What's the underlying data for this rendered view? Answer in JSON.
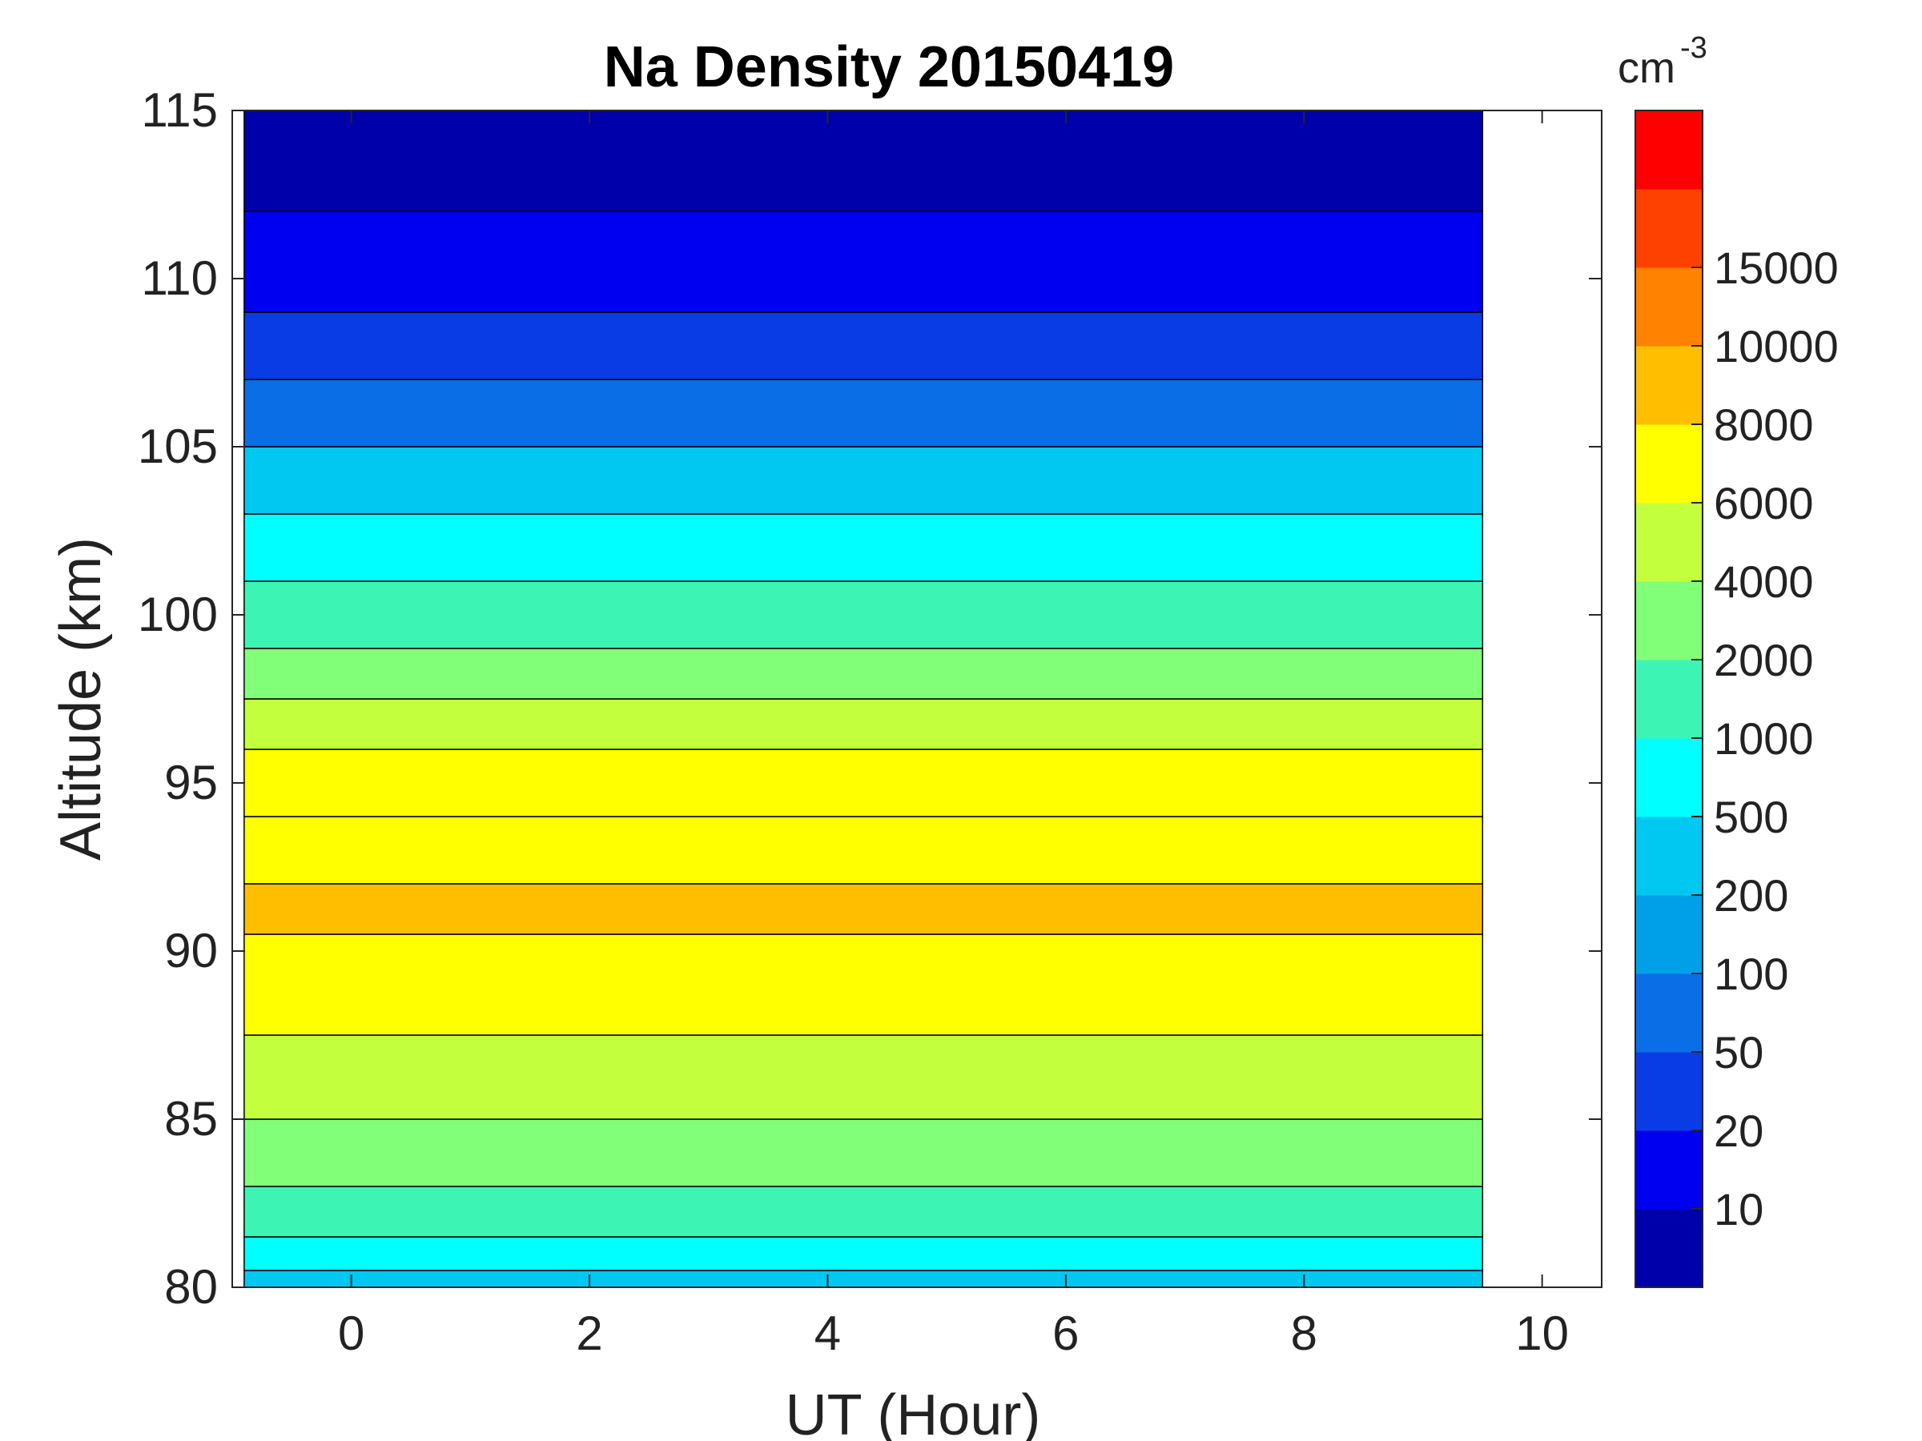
{
  "chart_data": {
    "type": "heatmap",
    "title": "Na Density 20150419",
    "xlabel": "UT (Hour)",
    "ylabel": "Altitude (km)",
    "xlim": [
      -1,
      10.5
    ],
    "ylim": [
      80,
      115
    ],
    "data_xrange": [
      -0.9,
      9.5
    ],
    "xticks": [
      0,
      2,
      4,
      6,
      8,
      10
    ],
    "yticks": [
      80,
      85,
      90,
      95,
      100,
      105,
      110,
      115
    ],
    "colorbar": {
      "unit_base": "cm",
      "unit_exp": "-3",
      "labels": [
        "10",
        "20",
        "50",
        "100",
        "200",
        "500",
        "1000",
        "2000",
        "4000",
        "6000",
        "8000",
        "10000",
        "15000"
      ],
      "colors": [
        "#0000AA",
        "#0000F0",
        "#0A3CE6",
        "#0A6EE6",
        "#00A0E8",
        "#00C8F0",
        "#00FFFF",
        "#3CF5B4",
        "#82FF78",
        "#C3FF3C",
        "#FFFF00",
        "#FFBE00",
        "#FF8200",
        "#FF4100",
        "#FF0000"
      ]
    },
    "altitude_profile_levels": [
      {
        "alt": 80.5,
        "level": 5
      },
      {
        "alt": 81.5,
        "level": 6
      },
      {
        "alt": 83,
        "level": 7
      },
      {
        "alt": 85,
        "level": 8
      },
      {
        "alt": 87.5,
        "level": 9
      },
      {
        "alt": 90.5,
        "level": 10
      },
      {
        "alt": 92,
        "level": 11
      },
      {
        "alt": 94,
        "level": 10
      },
      {
        "alt": 96,
        "level": 10
      },
      {
        "alt": 97.5,
        "level": 9
      },
      {
        "alt": 99,
        "level": 8
      },
      {
        "alt": 101,
        "level": 7
      },
      {
        "alt": 103,
        "level": 6
      },
      {
        "alt": 105,
        "level": 5
      },
      {
        "alt": 107,
        "level": 3
      },
      {
        "alt": 109,
        "level": 2
      },
      {
        "alt": 112,
        "level": 1
      },
      {
        "alt": 115,
        "level": 0
      }
    ]
  }
}
